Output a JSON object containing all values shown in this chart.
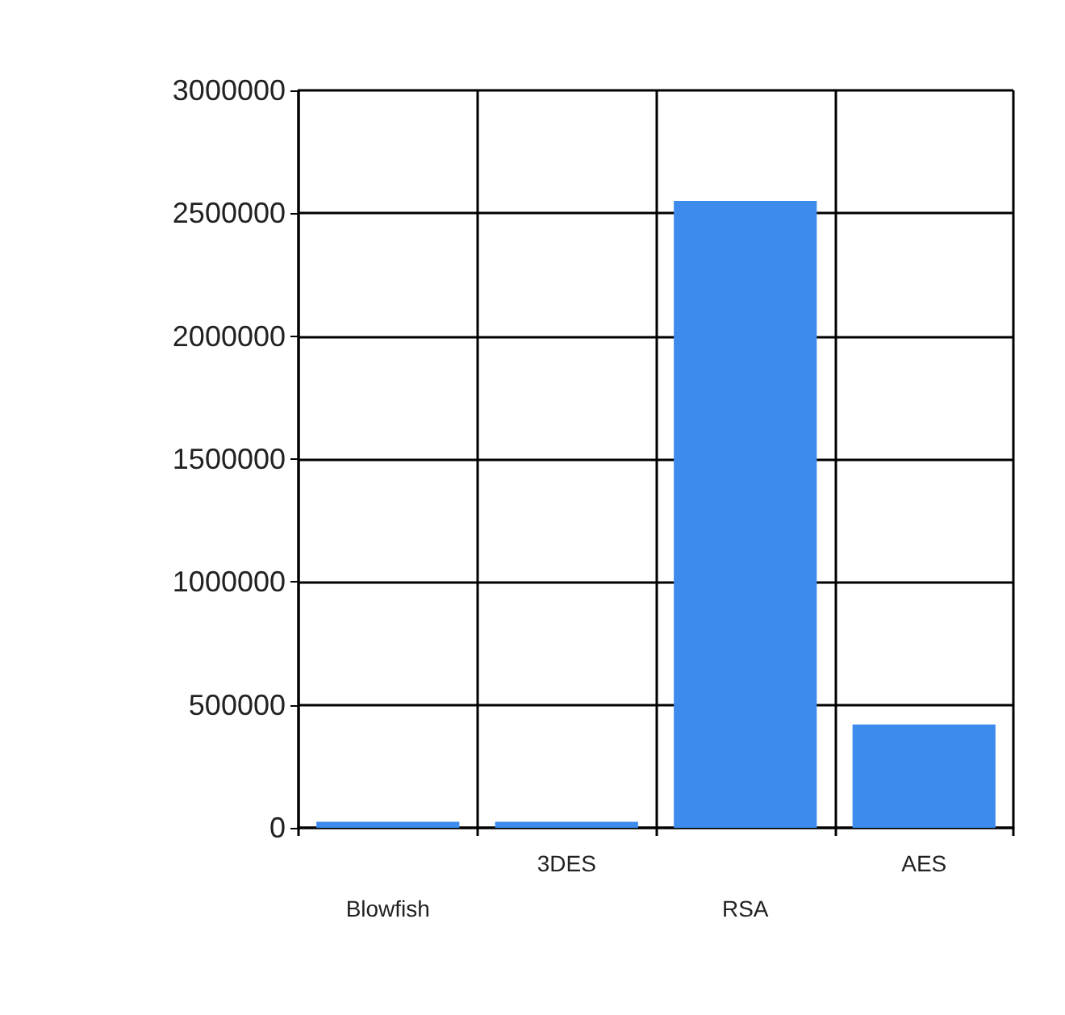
{
  "chart_data": {
    "type": "bar",
    "categories": [
      "Blowfish",
      "3DES",
      "RSA",
      "AES"
    ],
    "values": [
      25000,
      25000,
      2550000,
      420000
    ],
    "color": "#3d8bec",
    "ylim": [
      0,
      3000000
    ],
    "yticks": [
      0,
      500000,
      1000000,
      1500000,
      2000000,
      2500000,
      3000000
    ],
    "grid": true
  }
}
